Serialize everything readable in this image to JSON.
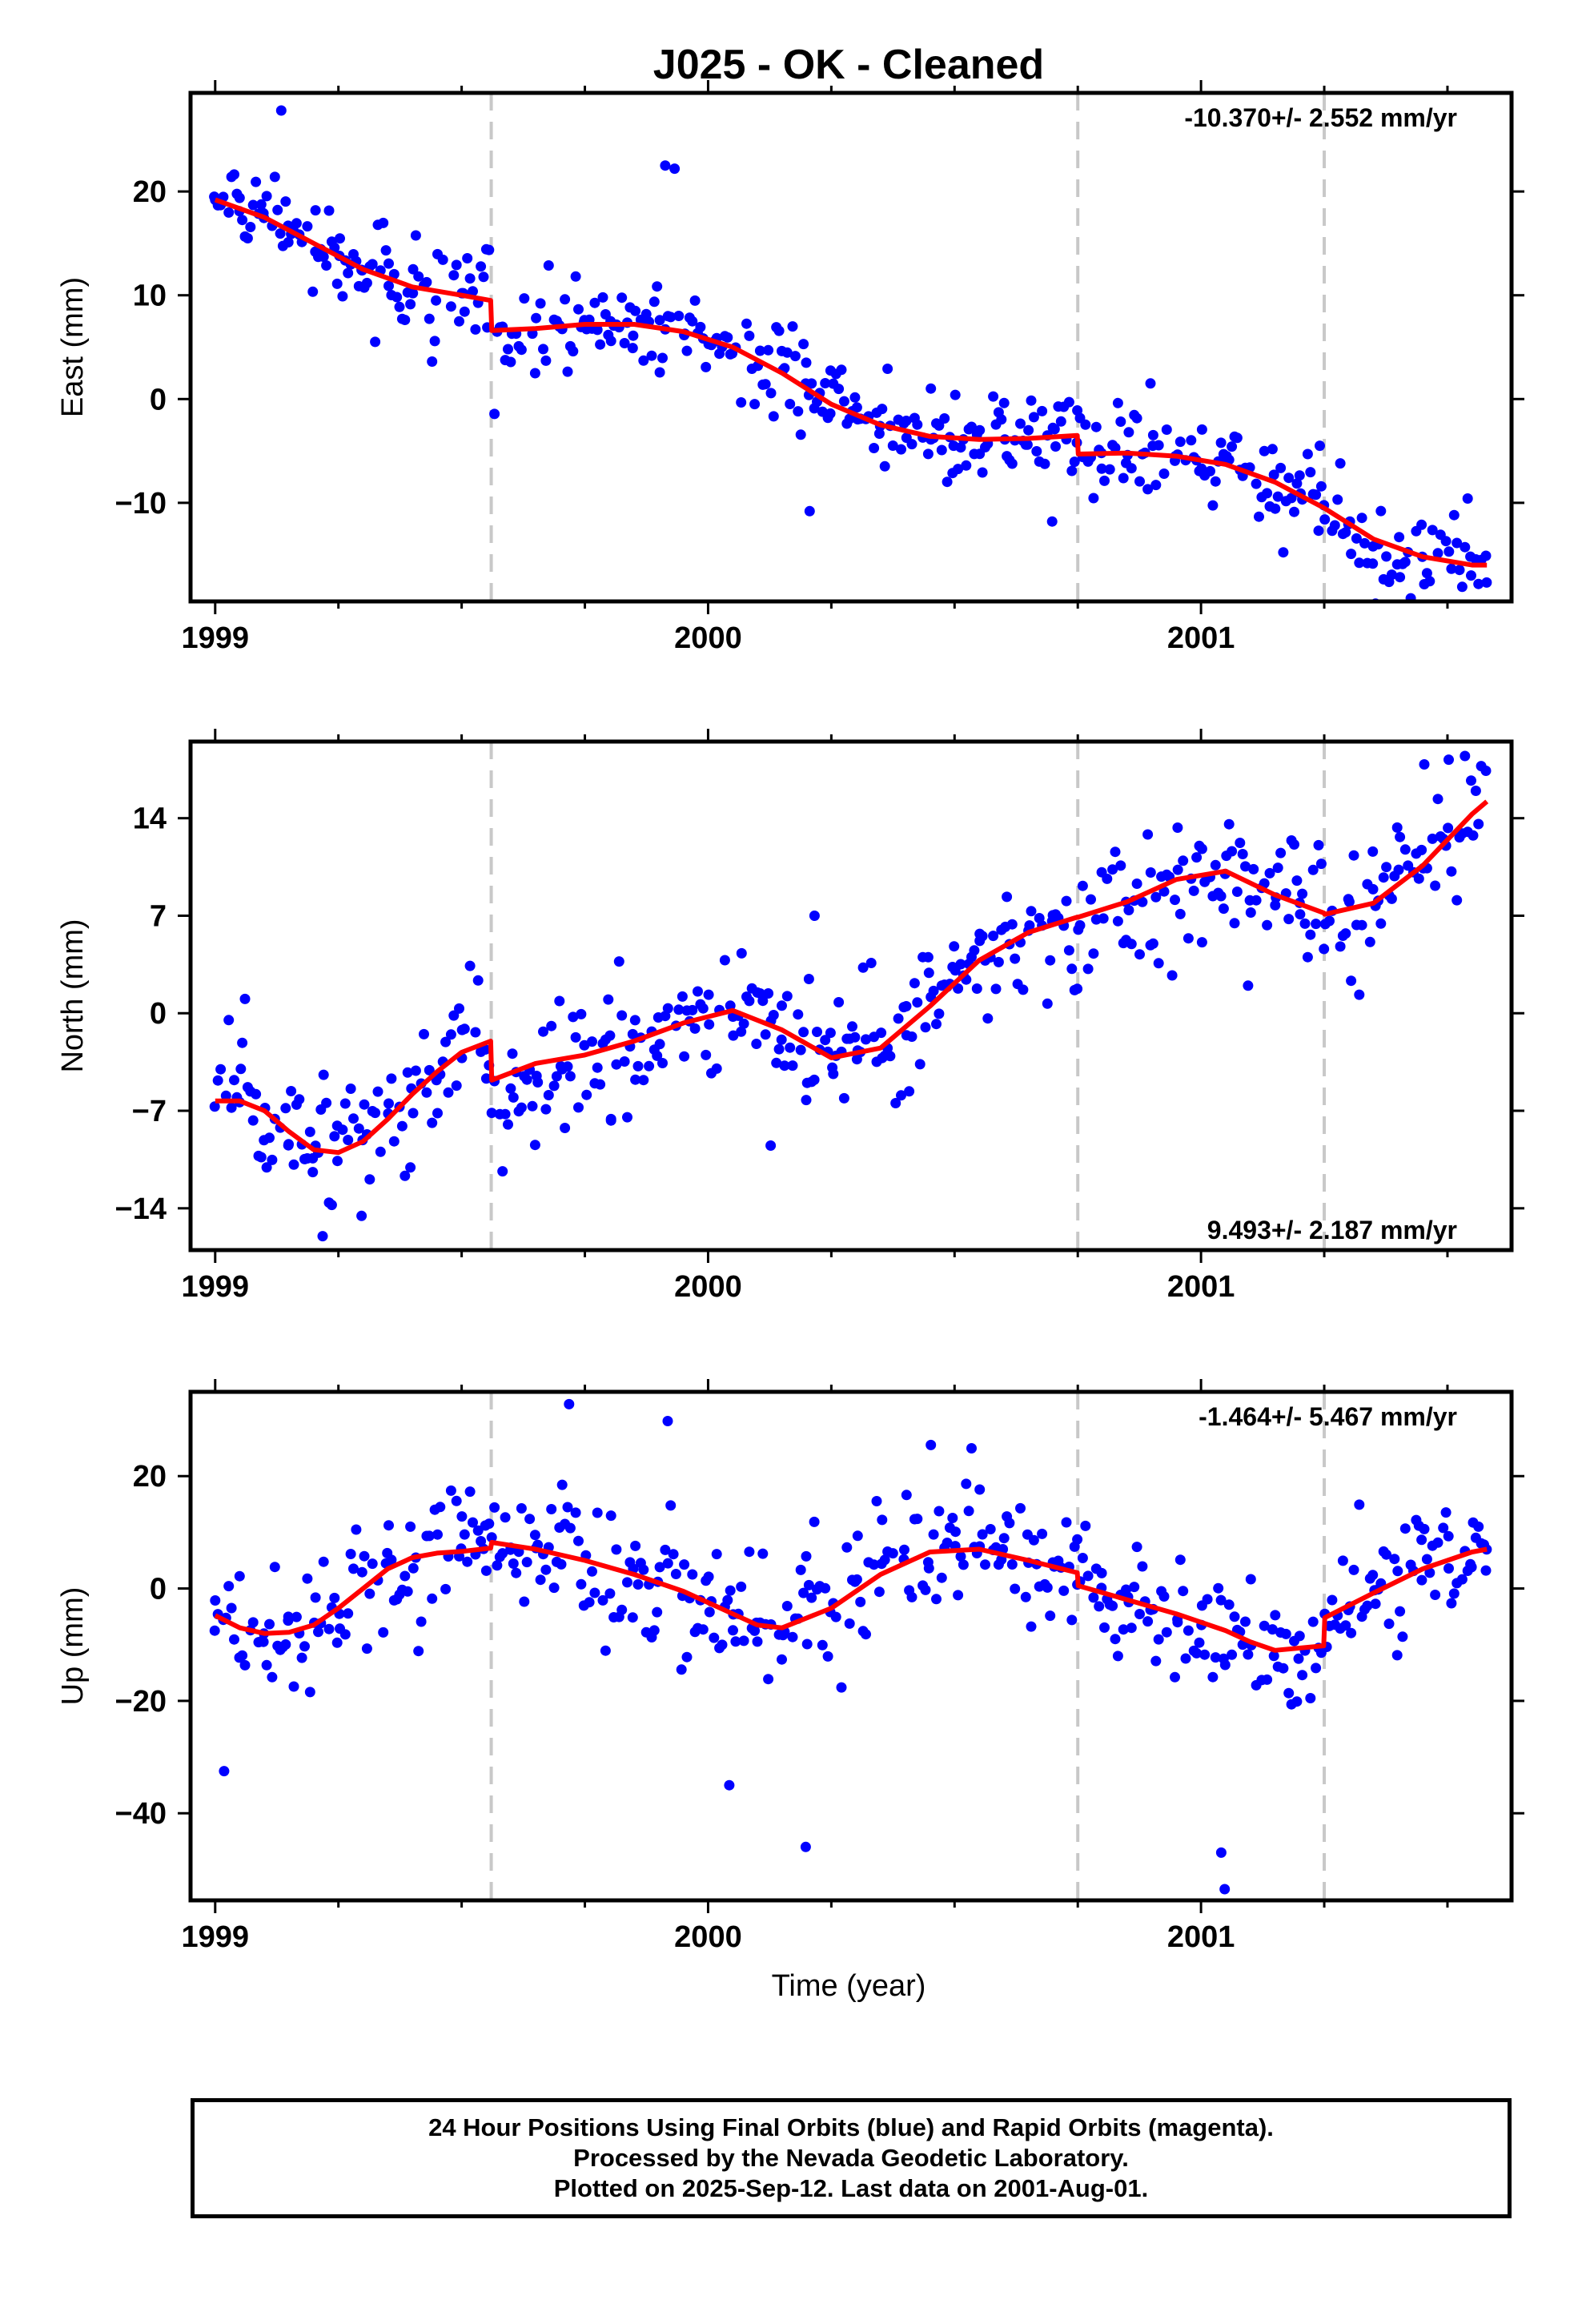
{
  "title": "J025  - OK - Cleaned",
  "xlabel": "Time (year)",
  "caption": [
    "24 Hour Positions Using Final Orbits (blue) and Rapid Orbits (magenta).",
    "Processed by the Nevada Geodetic Laboratory.",
    "Plotted on 2025-Sep-12. Last data on 2001-Aug-01."
  ],
  "colors": {
    "points": "#0000ff",
    "model": "#ff0000",
    "steps": "#c8c8c8",
    "frame": "#000000"
  },
  "chart_data": [
    {
      "type": "scatter",
      "component": "East",
      "ylabel": "East (mm)",
      "rate_text": "-10.370+/- 2.552 mm/yr",
      "rate_position": "top-right",
      "xlim": [
        1998.95,
        2001.63
      ],
      "ylim": [
        -19.5,
        29.5
      ],
      "xticks": [
        1999,
        2000,
        2001
      ],
      "xtick_labels": [
        "1999",
        "2000",
        "2001"
      ],
      "yticks": [
        -10,
        0,
        10,
        20
      ],
      "ytick_labels": [
        "−10",
        "0",
        "10",
        "20"
      ],
      "step_epochs": [
        1999.56,
        2000.75,
        2001.25
      ],
      "model": {
        "x": [
          1999.0,
          1999.1,
          1999.2,
          1999.3,
          1999.4,
          1999.5,
          1999.559,
          1999.561,
          1999.65,
          1999.75,
          1999.85,
          1999.95,
          2000.05,
          2000.15,
          2000.25,
          2000.35,
          2000.45,
          2000.55,
          2000.65,
          2000.749,
          2000.751,
          2000.85,
          2000.95,
          2001.05,
          2001.15,
          2001.25,
          2001.35,
          2001.45,
          2001.55,
          2001.58
        ],
        "y": [
          19.2,
          17.5,
          15.0,
          12.5,
          10.8,
          10.0,
          9.5,
          6.6,
          6.8,
          7.2,
          7.2,
          6.5,
          5.0,
          2.5,
          -0.5,
          -2.5,
          -3.6,
          -3.9,
          -3.8,
          -3.5,
          -5.3,
          -5.2,
          -5.5,
          -6.3,
          -8.0,
          -10.5,
          -13.5,
          -15.2,
          -16.0,
          -16.0
        ]
      },
      "series": [
        {
          "name": "Final Orbits",
          "x": [
            1998.998,
            1999.049,
            1999.098,
            1999.148,
            1999.203,
            1999.252,
            1999.298,
            1999.352,
            1999.401,
            1999.448,
            1999.503,
            1999.552,
            1999.602,
            1999.651,
            1999.698,
            1999.749,
            1999.802,
            1999.848,
            1999.902,
            1999.953,
            2000.001,
            2000.049,
            2000.101,
            2000.152,
            2000.198,
            2000.248,
            2000.302,
            2000.349,
            2000.402,
            2000.452,
            2000.498,
            2000.551,
            2000.602,
            2000.648,
            2000.703,
            2000.748,
            2000.798,
            2000.851,
            2000.902,
            2000.948,
            2001.001,
            2001.052,
            2001.099,
            2001.148,
            2001.202,
            2001.251,
            2001.302,
            2001.349,
            2001.402,
            2001.449,
            2001.503,
            2001.548,
            2001.578,
            1999.134,
            1999.913,
            1999.932,
            2000.206,
            2000.698,
            2001.241
          ],
          "y": [
            19.5,
            18.1,
            17.9,
            16.7,
            14.2,
            13.8,
            12.4,
            10.9,
            10.2,
            9.5,
            10.2,
            6.9,
            6.3,
            7.8,
            7.0,
            7.6,
            7.5,
            6.1,
            7.6,
            6.3,
            5.3,
            4.4,
            3.2,
            2.8,
            1.5,
            -1.4,
            -0.8,
            -2.6,
            -2.1,
            -3.9,
            -4.5,
            -3.0,
            -3.9,
            -4.4,
            -2.9,
            -4.2,
            -5.2,
            -5.4,
            -4.5,
            -5.5,
            -6.7,
            -5.5,
            -6.6,
            -7.3,
            -9.1,
            -11.6,
            -11.8,
            -14.2,
            -13.3,
            -15.2,
            -14.7,
            -17.0,
            -15.1,
            27.8,
            22.5,
            22.2,
            -10.8,
            -11.8,
            -4.5
          ]
        }
      ]
    },
    {
      "type": "scatter",
      "component": "North",
      "ylabel": "North (mm)",
      "rate_text": "9.493+/- 2.187 mm/yr",
      "rate_position": "bottom-right",
      "xlim": [
        1998.95,
        2001.63
      ],
      "ylim": [
        -17.0,
        19.5
      ],
      "xticks": [
        1999,
        2000,
        2001
      ],
      "xtick_labels": [
        "1999",
        "2000",
        "2001"
      ],
      "yticks": [
        -14,
        -7,
        0,
        7,
        14
      ],
      "ytick_labels": [
        "−14",
        "−7",
        "0",
        "7",
        "14"
      ],
      "step_epochs": [
        1999.56,
        2000.75,
        2001.25
      ],
      "model": {
        "x": [
          1999.0,
          1999.05,
          1999.1,
          1999.15,
          1999.2,
          1999.25,
          1999.3,
          1999.35,
          1999.4,
          1999.45,
          1999.5,
          1999.559,
          1999.561,
          1999.65,
          1999.75,
          1999.85,
          1999.95,
          2000.05,
          2000.15,
          2000.25,
          2000.35,
          2000.45,
          2000.55,
          2000.65,
          2000.749,
          2000.751,
          2000.85,
          2000.95,
          2001.05,
          2001.15,
          2001.249,
          2001.251,
          2001.35,
          2001.45,
          2001.55,
          2001.58
        ],
        "y": [
          -6.3,
          -6.3,
          -7.0,
          -8.5,
          -9.8,
          -10.0,
          -9.2,
          -7.6,
          -5.8,
          -4.2,
          -2.8,
          -2.0,
          -4.8,
          -3.6,
          -3.0,
          -2.0,
          -0.7,
          0.2,
          -1.2,
          -3.2,
          -2.5,
          0.5,
          3.8,
          5.8,
          6.9,
          6.9,
          8.0,
          9.6,
          10.2,
          8.5,
          7.2,
          7.1,
          7.9,
          10.6,
          14.3,
          15.2
        ]
      },
      "series": [
        {
          "name": "Final Orbits",
          "x": [
            1998.999,
            1999.052,
            1999.101,
            1999.149,
            1999.198,
            1999.248,
            1999.299,
            1999.351,
            1999.398,
            1999.449,
            1999.501,
            1999.548,
            1999.603,
            1999.652,
            1999.701,
            1999.749,
            1999.801,
            1999.852,
            1999.899,
            1999.948,
            2000.002,
            2000.051,
            2000.098,
            2000.149,
            2000.201,
            2000.252,
            2000.302,
            2000.351,
            2000.402,
            2000.448,
            2000.499,
            2000.551,
            2000.603,
            2000.652,
            2000.698,
            2000.751,
            2000.802,
            2000.848,
            2000.898,
            2000.953,
            2001.002,
            2001.049,
            2001.099,
            2001.152,
            2001.201,
            2001.252,
            2001.301,
            2001.349,
            2001.401,
            2001.451,
            2001.501,
            2001.548,
            2001.578,
            1999.218,
            2000.216,
            2000.127,
            1999.803,
            2000.068
          ],
          "y": [
            -6.7,
            -4.0,
            -6.8,
            -9.4,
            -11.4,
            -10.6,
            -9.1,
            -7.2,
            -5.4,
            -4.8,
            -1.2,
            -2.6,
            -2.9,
            -4.5,
            -3.8,
            -2.3,
            -1.6,
            -0.5,
            -0.3,
            1.2,
            -0.8,
            -1.6,
            -2.2,
            -1.9,
            -5.0,
            -3.9,
            -3.3,
            -1.4,
            0.5,
            2.9,
            4.8,
            5.7,
            6.2,
            6.3,
            6.6,
            6.0,
            6.8,
            8.0,
            10.1,
            10.3,
            11.8,
            10.0,
            8.1,
            8.3,
            7.1,
            6.4,
            8.0,
            8.9,
            10.3,
            10.4,
            13.3,
            16.7,
            17.4,
            -16.0,
            7.0,
            -9.5,
            -7.7,
            4.3
          ]
        }
      ]
    },
    {
      "type": "scatter",
      "component": "Up",
      "ylabel": "Up (mm)",
      "rate_text": "-1.464+/- 5.467 mm/yr",
      "rate_position": "top-right",
      "xlim": [
        1998.95,
        2001.63
      ],
      "ylim": [
        -55.5,
        35.0
      ],
      "xticks": [
        1999,
        2000,
        2001
      ],
      "xtick_labels": [
        "1999",
        "2000",
        "2001"
      ],
      "yticks": [
        -40,
        -20,
        0,
        20
      ],
      "ytick_labels": [
        "−40",
        "−20",
        "0",
        "20"
      ],
      "step_epochs": [
        1999.56,
        2000.75,
        2001.25
      ],
      "model": {
        "x": [
          1999.0,
          1999.05,
          1999.1,
          1999.15,
          1999.2,
          1999.25,
          1999.3,
          1999.35,
          1999.4,
          1999.45,
          1999.5,
          1999.559,
          1999.561,
          1999.65,
          1999.75,
          1999.85,
          1999.95,
          2000.05,
          2000.1,
          2000.15,
          2000.25,
          2000.35,
          2000.45,
          2000.55,
          2000.65,
          2000.749,
          2000.751,
          2000.85,
          2000.95,
          2001.05,
          2001.1,
          2001.15,
          2001.249,
          2001.251,
          2001.35,
          2001.45,
          2001.55,
          2001.58
        ],
        "y": [
          -4.8,
          -7.0,
          -8.0,
          -7.8,
          -6.5,
          -3.5,
          0.0,
          3.5,
          5.5,
          6.3,
          6.6,
          7.2,
          8.2,
          7.0,
          5.0,
          2.5,
          -0.5,
          -4.5,
          -6.5,
          -7.0,
          -3.5,
          2.5,
          6.5,
          7.0,
          5.0,
          2.8,
          0.5,
          -2.0,
          -4.5,
          -7.5,
          -9.5,
          -11.0,
          -10.2,
          -5.2,
          -0.8,
          3.5,
          6.5,
          7.0
        ]
      },
      "series": [
        {
          "name": "Final Orbits",
          "x": [
            1998.999,
            1999.049,
            1999.098,
            1999.148,
            1999.201,
            1999.252,
            1999.298,
            1999.349,
            1999.402,
            1999.451,
            1999.499,
            1999.548,
            1999.599,
            1999.651,
            1999.702,
            1999.752,
            1999.801,
            1999.848,
            1999.898,
            1999.948,
            2000.003,
            2000.051,
            2000.098,
            2000.152,
            2000.201,
            2000.248,
            2000.302,
            2000.352,
            2000.398,
            2000.448,
            2000.502,
            2000.551,
            2000.598,
            2000.648,
            2000.702,
            2000.749,
            2000.798,
            2000.852,
            2000.899,
            2000.952,
            2001.001,
            2001.049,
            2001.102,
            2001.148,
            2001.198,
            2001.251,
            2001.302,
            2001.352,
            2001.399,
            2001.448,
            2001.502,
            2001.549,
            2001.578,
            1999.018,
            1999.718,
            1999.918,
            2000.198,
            2000.043,
            2001.041,
            2001.048
          ],
          "y": [
            -7.5,
            -12.3,
            -9.5,
            -5.7,
            -6.1,
            -4.5,
            2.9,
            6.3,
            3.6,
            9.6,
            7.1,
            11.2,
            6.9,
            7.2,
            4.3,
            5.9,
            -0.9,
            3.5,
            1.2,
            -1.3,
            -4.2,
            -4.6,
            -6.1,
            -8.3,
            -9.9,
            -4.2,
            1.6,
            4.4,
            6.9,
            3.6,
            10.1,
            7.5,
            7.0,
            9.6,
            3.9,
            0.7,
            0.1,
            -1.5,
            -3.8,
            -5.5,
            -6.5,
            -13.6,
            -10.1,
            -12.0,
            -12.5,
            -4.5,
            -3.2,
            -0.3,
            3.1,
            1.5,
            9.3,
            3.8,
            3.2,
            -32.5,
            32.8,
            29.8,
            -46.0,
            -35.0,
            -47.0,
            -53.5
          ]
        }
      ]
    }
  ]
}
